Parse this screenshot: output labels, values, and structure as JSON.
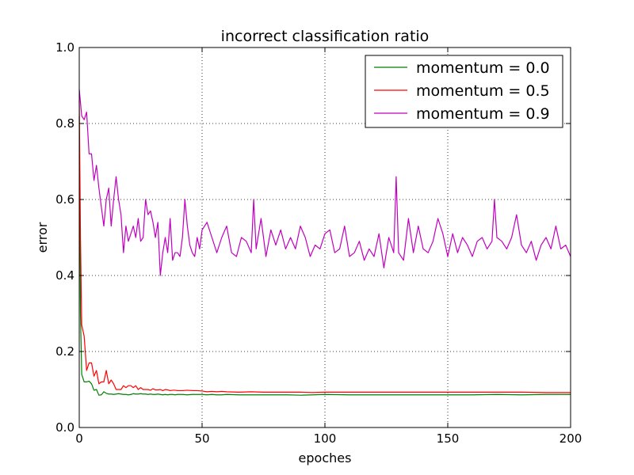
{
  "chart_data": {
    "type": "line",
    "title": "incorrect classification ratio",
    "xlabel": "epoches",
    "ylabel": "error",
    "xlim": [
      0,
      200
    ],
    "ylim": [
      0.0,
      1.0
    ],
    "xticks": [
      0,
      50,
      100,
      150,
      200
    ],
    "xtick_labels": [
      "0",
      "50",
      "100",
      "150",
      "200"
    ],
    "yticks": [
      0.0,
      0.2,
      0.4,
      0.6,
      0.8,
      1.0
    ],
    "ytick_labels": [
      "0.0",
      "0.2",
      "0.4",
      "0.6",
      "0.8",
      "1.0"
    ],
    "grid": true,
    "legend_position": "top-right",
    "series": [
      {
        "name": "momentum = 0.0",
        "color": "#008000",
        "x": [
          0,
          0.5,
          1,
          2,
          3,
          4,
          5,
          6,
          7,
          8,
          9,
          10,
          11,
          12,
          13,
          14,
          15,
          16,
          17,
          18,
          19,
          20,
          21,
          22,
          23,
          24,
          25,
          26,
          27,
          28,
          29,
          30,
          31,
          32,
          33,
          34,
          35,
          36,
          37,
          38,
          39,
          40,
          42,
          44,
          46,
          48,
          50,
          52,
          54,
          56,
          58,
          60,
          65,
          70,
          75,
          80,
          85,
          90,
          95,
          100,
          110,
          120,
          130,
          140,
          150,
          160,
          170,
          180,
          190,
          200
        ],
        "y": [
          0.82,
          0.3,
          0.14,
          0.12,
          0.12,
          0.122,
          0.115,
          0.098,
          0.1,
          0.085,
          0.086,
          0.094,
          0.09,
          0.088,
          0.088,
          0.087,
          0.088,
          0.089,
          0.088,
          0.087,
          0.087,
          0.086,
          0.087,
          0.089,
          0.088,
          0.088,
          0.089,
          0.088,
          0.088,
          0.087,
          0.088,
          0.087,
          0.087,
          0.088,
          0.087,
          0.086,
          0.087,
          0.086,
          0.087,
          0.087,
          0.086,
          0.087,
          0.087,
          0.086,
          0.087,
          0.087,
          0.087,
          0.086,
          0.087,
          0.086,
          0.086,
          0.087,
          0.086,
          0.086,
          0.086,
          0.086,
          0.086,
          0.085,
          0.086,
          0.087,
          0.086,
          0.086,
          0.086,
          0.086,
          0.086,
          0.086,
          0.087,
          0.086,
          0.087,
          0.087
        ]
      },
      {
        "name": "momentum = 0.5",
        "color": "#ff0000",
        "x": [
          0,
          0.5,
          1,
          2,
          3,
          4,
          5,
          6,
          7,
          8,
          9,
          10,
          11,
          12,
          13,
          14,
          15,
          16,
          17,
          18,
          19,
          20,
          21,
          22,
          23,
          24,
          25,
          26,
          27,
          28,
          29,
          30,
          31,
          32,
          33,
          34,
          35,
          36,
          37,
          38,
          39,
          40,
          42,
          44,
          46,
          48,
          50,
          52,
          54,
          56,
          58,
          60,
          65,
          70,
          75,
          80,
          85,
          90,
          95,
          100,
          110,
          120,
          130,
          140,
          150,
          160,
          170,
          180,
          190,
          200
        ],
        "y": [
          0.86,
          0.5,
          0.27,
          0.24,
          0.15,
          0.17,
          0.17,
          0.135,
          0.15,
          0.115,
          0.12,
          0.12,
          0.15,
          0.115,
          0.125,
          0.115,
          0.1,
          0.1,
          0.1,
          0.11,
          0.105,
          0.11,
          0.11,
          0.105,
          0.11,
          0.1,
          0.105,
          0.1,
          0.1,
          0.1,
          0.098,
          0.102,
          0.099,
          0.099,
          0.1,
          0.097,
          0.1,
          0.099,
          0.097,
          0.098,
          0.098,
          0.097,
          0.097,
          0.098,
          0.097,
          0.097,
          0.096,
          0.094,
          0.095,
          0.094,
          0.095,
          0.094,
          0.093,
          0.094,
          0.093,
          0.093,
          0.093,
          0.093,
          0.092,
          0.093,
          0.093,
          0.093,
          0.093,
          0.093,
          0.093,
          0.093,
          0.093,
          0.093,
          0.092,
          0.092
        ]
      },
      {
        "name": "momentum = 0.9",
        "color": "#bf00bf",
        "x": [
          0,
          1,
          2,
          3,
          4,
          5,
          6,
          7,
          8,
          9,
          10,
          11,
          12,
          13,
          14,
          15,
          16,
          17,
          18,
          19,
          20,
          21,
          22,
          23,
          24,
          25,
          26,
          27,
          28,
          29,
          30,
          31,
          32,
          33,
          34,
          35,
          36,
          37,
          38,
          39,
          40,
          41,
          42,
          43,
          44,
          45,
          46,
          47,
          48,
          49,
          50,
          52,
          54,
          56,
          58,
          60,
          62,
          64,
          66,
          68,
          70,
          71,
          72,
          74,
          76,
          78,
          80,
          82,
          84,
          86,
          88,
          90,
          92,
          94,
          96,
          98,
          100,
          102,
          104,
          106,
          108,
          110,
          112,
          114,
          116,
          118,
          120,
          122,
          124,
          126,
          128,
          129,
          130,
          132,
          134,
          136,
          138,
          140,
          142,
          144,
          146,
          148,
          150,
          152,
          154,
          156,
          158,
          160,
          162,
          164,
          166,
          168,
          169,
          170,
          172,
          174,
          176,
          178,
          180,
          182,
          184,
          186,
          188,
          190,
          192,
          194,
          196,
          198,
          200
        ],
        "y": [
          0.89,
          0.82,
          0.81,
          0.83,
          0.72,
          0.72,
          0.65,
          0.69,
          0.63,
          0.58,
          0.53,
          0.6,
          0.63,
          0.53,
          0.6,
          0.66,
          0.6,
          0.56,
          0.46,
          0.53,
          0.49,
          0.51,
          0.53,
          0.5,
          0.55,
          0.49,
          0.5,
          0.6,
          0.56,
          0.57,
          0.54,
          0.5,
          0.54,
          0.4,
          0.46,
          0.5,
          0.46,
          0.55,
          0.44,
          0.46,
          0.46,
          0.45,
          0.5,
          0.6,
          0.53,
          0.48,
          0.46,
          0.45,
          0.5,
          0.47,
          0.52,
          0.54,
          0.5,
          0.46,
          0.5,
          0.53,
          0.46,
          0.45,
          0.5,
          0.49,
          0.46,
          0.6,
          0.47,
          0.55,
          0.45,
          0.52,
          0.48,
          0.52,
          0.47,
          0.5,
          0.47,
          0.53,
          0.5,
          0.45,
          0.48,
          0.47,
          0.51,
          0.52,
          0.46,
          0.47,
          0.53,
          0.45,
          0.46,
          0.49,
          0.44,
          0.47,
          0.45,
          0.51,
          0.42,
          0.5,
          0.46,
          0.66,
          0.46,
          0.44,
          0.55,
          0.46,
          0.53,
          0.47,
          0.46,
          0.49,
          0.55,
          0.51,
          0.45,
          0.51,
          0.46,
          0.5,
          0.48,
          0.45,
          0.49,
          0.5,
          0.47,
          0.49,
          0.6,
          0.5,
          0.49,
          0.47,
          0.5,
          0.56,
          0.48,
          0.46,
          0.49,
          0.44,
          0.48,
          0.5,
          0.47,
          0.53,
          0.47,
          0.48,
          0.45
        ]
      }
    ]
  }
}
